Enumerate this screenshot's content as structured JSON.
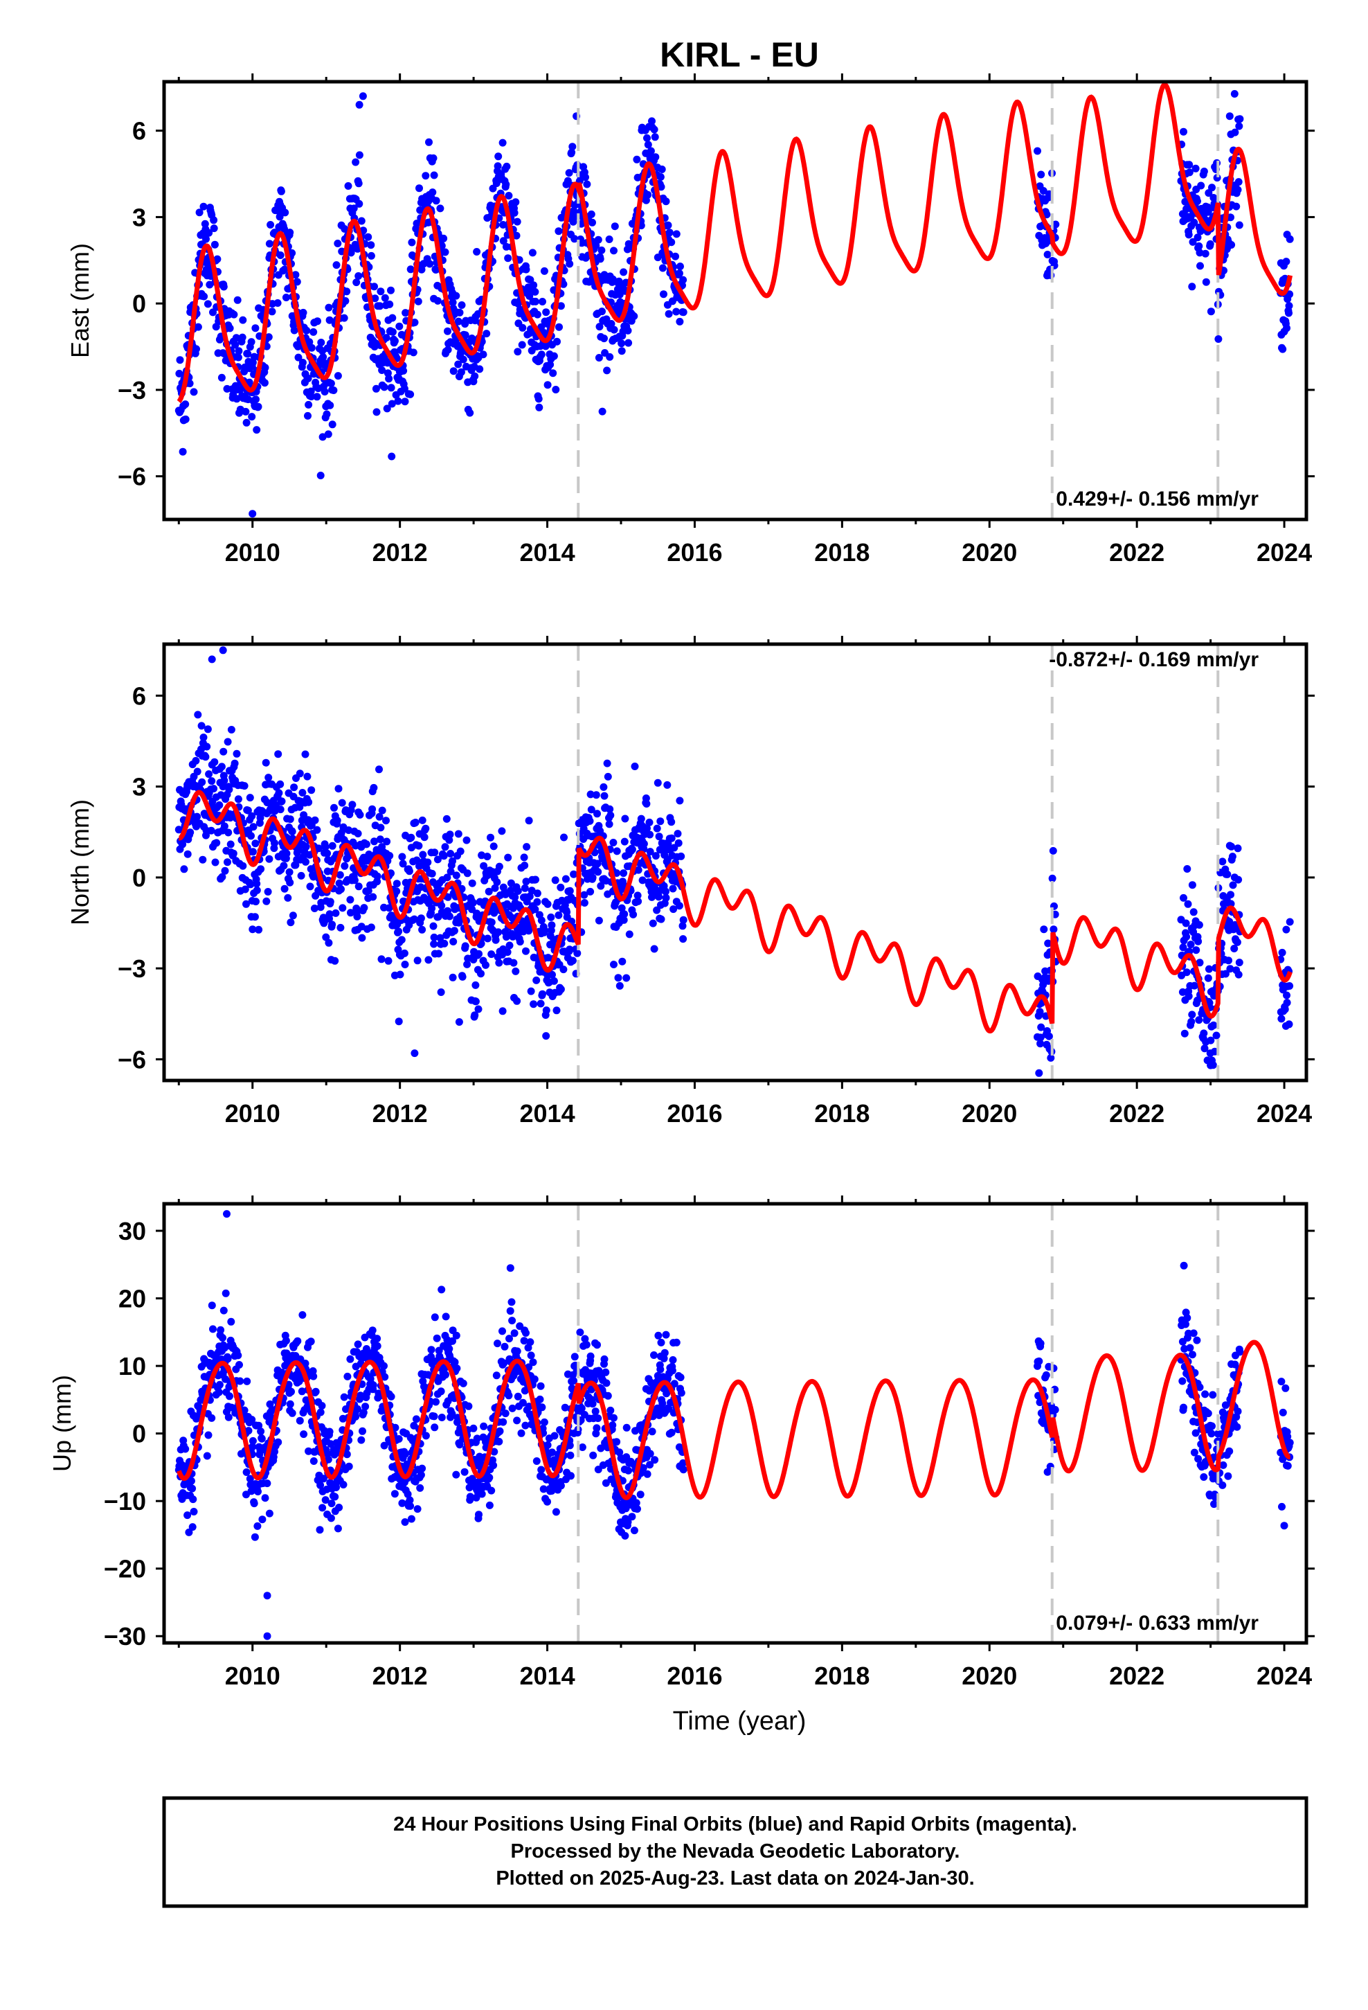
{
  "title": "KIRL - EU",
  "xlabel": "Time (year)",
  "footer": {
    "line1": "24 Hour Positions Using Final Orbits (blue) and Rapid Orbits (magenta).",
    "line2": "Processed by the Nevada Geodetic Laboratory.",
    "line3": "Plotted on 2025-Aug-23. Last data on 2024-Jan-30."
  },
  "colors": {
    "points": "#0000ff",
    "model": "#ff0000",
    "breaks": "#c8c8c8",
    "frame": "#000000"
  },
  "chart_data": [
    {
      "type": "scatter",
      "id": "east",
      "ylabel": "East (mm)",
      "rate": "0.429+/- 0.156 mm/yr",
      "xlim": [
        2008.8,
        2024.3
      ],
      "ylim": [
        -7.5,
        7.7
      ],
      "xticks": [
        2010,
        2012,
        2014,
        2016,
        2018,
        2020,
        2022,
        2024
      ],
      "yticks": [
        -6,
        -3,
        0,
        3,
        6
      ],
      "ytick_labels": [
        "−6",
        "−3",
        "0",
        "3",
        "6"
      ],
      "breaks": [
        2014.42,
        2020.85,
        2023.1
      ],
      "model": {
        "rate": 0.429,
        "segments": [
          {
            "start": 2009.0,
            "end": 2014.42,
            "offset": -1.2,
            "intercept_year": 2009.0,
            "annual_amp": 2.5,
            "annual_peak": 2009.4,
            "semi_amp": 0.6,
            "semi_peak": 2009.35
          },
          {
            "start": 2014.42,
            "end": 2020.85,
            "offset": 1.4,
            "intercept_year": 2014.42,
            "annual_amp": 2.5,
            "annual_peak": 2015.4,
            "semi_amp": 0.6,
            "semi_peak": 2015.35
          },
          {
            "start": 2020.85,
            "end": 2023.1,
            "offset": 3.9,
            "intercept_year": 2020.85,
            "annual_amp": 2.5,
            "annual_peak": 2021.4,
            "semi_amp": 0.6,
            "semi_peak": 2021.35
          },
          {
            "start": 2023.1,
            "end": 2024.08,
            "offset": 2.2,
            "intercept_year": 2023.1,
            "annual_amp": 2.5,
            "annual_peak": 2023.4,
            "semi_amp": 0.6,
            "semi_peak": 2023.35
          }
        ]
      },
      "data_spans": [
        [
          2009.0,
          2015.85
        ],
        [
          2020.65,
          2020.9
        ],
        [
          2022.6,
          2023.4
        ],
        [
          2023.95,
          2024.08
        ]
      ],
      "noise_sd": 1.0,
      "outliers": [
        [
          2011.5,
          7.2
        ],
        [
          2011.45,
          6.9
        ],
        [
          2010.0,
          -7.3
        ]
      ]
    },
    {
      "type": "scatter",
      "id": "north",
      "ylabel": "North (mm)",
      "rate": "-0.872+/- 0.169 mm/yr",
      "xlim": [
        2008.8,
        2024.3
      ],
      "ylim": [
        -6.7,
        7.7
      ],
      "xticks": [
        2010,
        2012,
        2014,
        2016,
        2018,
        2020,
        2022,
        2024
      ],
      "yticks": [
        -6,
        -3,
        0,
        3,
        6
      ],
      "ytick_labels": [
        "−6",
        "−3",
        "0",
        "3",
        "6"
      ],
      "breaks": [
        2014.42,
        2020.85,
        2023.1
      ],
      "model": {
        "rate": -0.872,
        "segments": [
          {
            "start": 2009.0,
            "end": 2014.42,
            "offset": 2.4,
            "intercept_year": 2009.0,
            "annual_amp": 0.5,
            "annual_peak": 2009.5,
            "semi_amp": 0.6,
            "semi_peak": 2009.25
          },
          {
            "start": 2014.42,
            "end": 2020.85,
            "offset": 0.9,
            "intercept_year": 2014.42,
            "annual_amp": 0.5,
            "annual_peak": 2015.5,
            "semi_amp": 0.6,
            "semi_peak": 2015.25
          },
          {
            "start": 2020.85,
            "end": 2023.1,
            "offset": -1.6,
            "intercept_year": 2020.85,
            "annual_amp": 0.5,
            "annual_peak": 2021.5,
            "semi_amp": 0.6,
            "semi_peak": 2021.25
          },
          {
            "start": 2023.1,
            "end": 2024.08,
            "offset": -1.5,
            "intercept_year": 2023.1,
            "annual_amp": 0.5,
            "annual_peak": 2023.5,
            "semi_amp": 0.6,
            "semi_peak": 2023.25
          }
        ]
      },
      "data_spans": [
        [
          2009.0,
          2015.85
        ],
        [
          2020.65,
          2020.9
        ],
        [
          2022.6,
          2023.4
        ],
        [
          2023.95,
          2024.08
        ]
      ],
      "noise_sd": 1.1,
      "outliers": [
        [
          2009.45,
          7.2
        ],
        [
          2009.6,
          7.5
        ],
        [
          2012.2,
          -5.8
        ],
        [
          2023.0,
          -6.2
        ]
      ]
    },
    {
      "type": "scatter",
      "id": "up",
      "ylabel": "Up (mm)",
      "rate": "0.079+/- 0.633 mm/yr",
      "xlim": [
        2008.8,
        2024.3
      ],
      "ylim": [
        -31,
        34
      ],
      "xticks": [
        2010,
        2012,
        2014,
        2016,
        2018,
        2020,
        2022,
        2024
      ],
      "yticks": [
        -30,
        -20,
        -10,
        0,
        10,
        20,
        30
      ],
      "ytick_labels": [
        "−30",
        "−20",
        "−10",
        "0",
        "10",
        "20",
        "30"
      ],
      "breaks": [
        2014.42,
        2020.85,
        2023.1
      ],
      "model": {
        "rate": 0.079,
        "segments": [
          {
            "start": 2009.0,
            "end": 2014.42,
            "offset": 2.4,
            "intercept_year": 2009.0,
            "annual_amp": 8.5,
            "annual_peak": 2009.58,
            "semi_amp": 0.6,
            "semi_peak": 2009.3
          },
          {
            "start": 2014.42,
            "end": 2020.85,
            "offset": -0.5,
            "intercept_year": 2014.42,
            "annual_amp": 8.5,
            "annual_peak": 2015.58,
            "semi_amp": 0.6,
            "semi_peak": 2015.3
          },
          {
            "start": 2020.85,
            "end": 2023.1,
            "offset": 3.5,
            "intercept_year": 2020.85,
            "annual_amp": 8.5,
            "annual_peak": 2021.58,
            "semi_amp": 0.6,
            "semi_peak": 2021.3
          },
          {
            "start": 2023.1,
            "end": 2024.08,
            "offset": 5.5,
            "intercept_year": 2023.1,
            "annual_amp": 8.5,
            "annual_peak": 2023.58,
            "semi_amp": 0.6,
            "semi_peak": 2023.3
          }
        ]
      },
      "data_spans": [
        [
          2009.0,
          2015.85
        ],
        [
          2020.65,
          2020.9
        ],
        [
          2022.6,
          2023.4
        ],
        [
          2023.95,
          2024.08
        ]
      ],
      "noise_sd": 3.8,
      "outliers": [
        [
          2009.65,
          32.5
        ],
        [
          2010.2,
          -30.0
        ],
        [
          2010.2,
          -24.0
        ],
        [
          2013.5,
          24.5
        ]
      ]
    }
  ]
}
